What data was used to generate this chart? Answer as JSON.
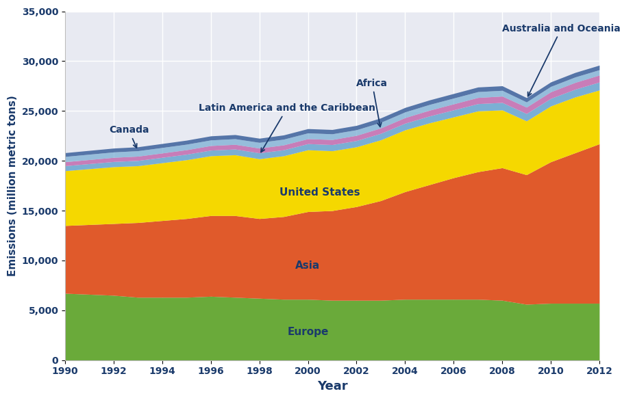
{
  "years": [
    1990,
    1991,
    1992,
    1993,
    1994,
    1995,
    1996,
    1997,
    1998,
    1999,
    2000,
    2001,
    2002,
    2003,
    2004,
    2005,
    2006,
    2007,
    2008,
    2009,
    2010,
    2011,
    2012
  ],
  "europe": [
    6700,
    6600,
    6500,
    6300,
    6300,
    6300,
    6400,
    6300,
    6200,
    6100,
    6100,
    6000,
    6000,
    6000,
    6100,
    6100,
    6100,
    6100,
    6000,
    5600,
    5700,
    5700,
    5700
  ],
  "asia": [
    6800,
    7000,
    7200,
    7500,
    7700,
    7900,
    8100,
    8200,
    8000,
    8300,
    8800,
    9000,
    9400,
    10000,
    10800,
    11500,
    12200,
    12800,
    13300,
    13000,
    14200,
    15100,
    16000
  ],
  "united_states": [
    5500,
    5600,
    5700,
    5700,
    5800,
    5900,
    6000,
    6100,
    6000,
    6100,
    6200,
    6000,
    6000,
    6100,
    6200,
    6200,
    6100,
    6100,
    5800,
    5400,
    5600,
    5600,
    5400
  ],
  "latin_america": [
    500,
    510,
    520,
    530,
    540,
    555,
    565,
    575,
    590,
    600,
    615,
    620,
    630,
    650,
    670,
    690,
    710,
    730,
    750,
    740,
    760,
    780,
    800
  ],
  "africa": [
    400,
    410,
    420,
    430,
    440,
    450,
    460,
    470,
    480,
    490,
    500,
    510,
    520,
    540,
    560,
    580,
    600,
    620,
    640,
    640,
    660,
    680,
    700
  ],
  "canada": [
    530,
    535,
    540,
    545,
    550,
    555,
    560,
    565,
    570,
    575,
    580,
    570,
    560,
    565,
    570,
    575,
    580,
    585,
    575,
    520,
    540,
    545,
    535
  ],
  "australia_oceania": [
    380,
    385,
    390,
    395,
    400,
    405,
    410,
    415,
    420,
    425,
    430,
    435,
    440,
    445,
    450,
    455,
    460,
    465,
    460,
    440,
    450,
    455,
    460
  ],
  "colors": {
    "europe": "#6aaa3a",
    "asia": "#e05a2b",
    "united_states": "#f5d800",
    "latin_america": "#7bafd4",
    "africa": "#c87db8",
    "canada": "#7bafd4",
    "australia_oceania": "#5575a8"
  },
  "background_color": "#e8eaf2",
  "annotation_color": "#1a3a6b",
  "ylabel": "Emissions (million metric tons)",
  "xlabel": "Year",
  "ylim": [
    0,
    35000
  ],
  "yticks": [
    0,
    5000,
    10000,
    15000,
    20000,
    25000,
    30000,
    35000
  ]
}
